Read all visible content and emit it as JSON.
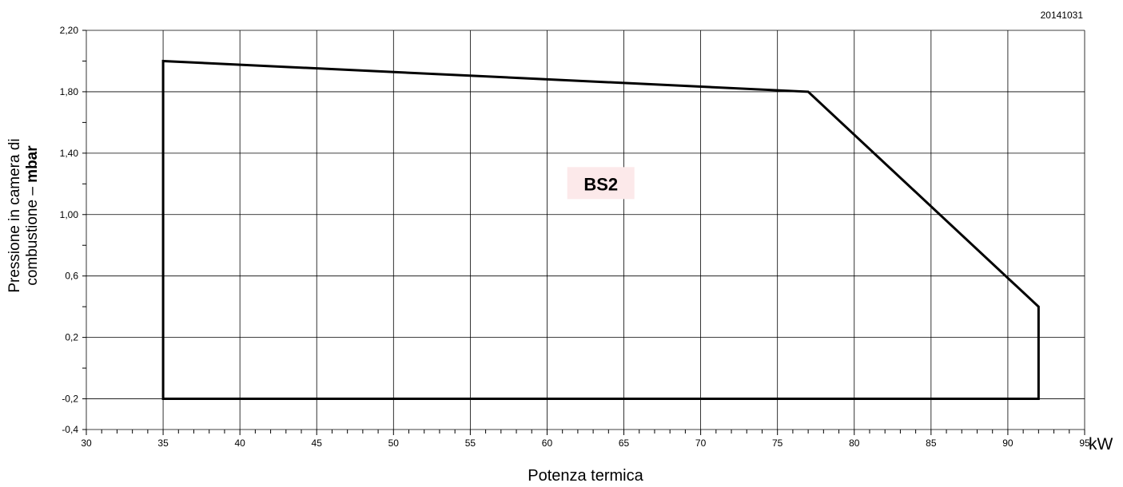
{
  "doc_code": "20141031",
  "chart_data": {
    "type": "area",
    "title": "",
    "xlabel": "Potenza termica",
    "x_unit": "kW",
    "ylabel_line1": "Pressione in camera di",
    "ylabel_line2_plain": "combustione – ",
    "ylabel_line2_bold": "mbar",
    "xlim": [
      30,
      95
    ],
    "ylim": [
      -0.4,
      2.2
    ],
    "x_ticks": [
      30,
      35,
      40,
      45,
      50,
      55,
      60,
      65,
      70,
      75,
      80,
      85,
      90,
      95
    ],
    "y_ticks": [
      {
        "value": 2.2,
        "label": "2,20"
      },
      {
        "value": 1.8,
        "label": "1,80"
      },
      {
        "value": 1.4,
        "label": "1,40"
      },
      {
        "value": 1.0,
        "label": "1,00"
      },
      {
        "value": 0.6,
        "label": "0,6"
      },
      {
        "value": 0.2,
        "label": "0,2"
      },
      {
        "value": -0.2,
        "label": "-0,2"
      },
      {
        "value": -0.4,
        "label": "-0,4"
      }
    ],
    "grid": true,
    "series": [
      {
        "name": "BS2",
        "points": [
          [
            35,
            -0.2
          ],
          [
            35,
            2.0
          ],
          [
            77,
            1.8
          ],
          [
            92,
            0.4
          ],
          [
            92,
            -0.2
          ]
        ],
        "closed": true,
        "label_position": [
          63.5,
          1.2
        ]
      }
    ]
  },
  "colors": {
    "line": "#000000",
    "grid": "#000000",
    "label_bg": "#fce9ea"
  }
}
